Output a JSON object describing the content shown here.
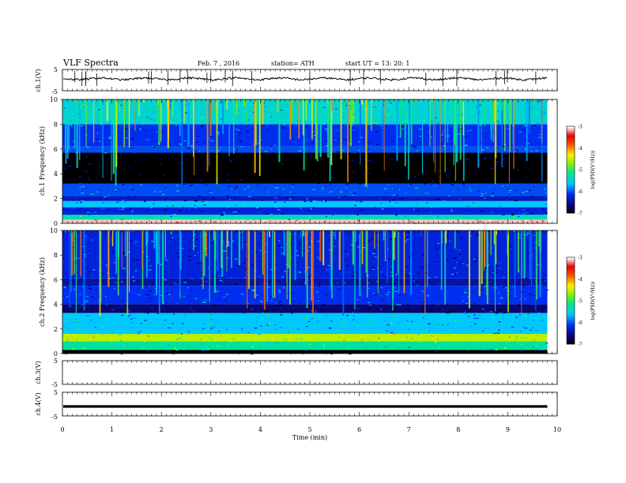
{
  "header": {
    "title": "VLF  Spectra",
    "date": "Feb. 7  , 2016",
    "station": "station= ATH",
    "start": "start  UT  =   13: 20: 1"
  },
  "chart_data": [
    {
      "type": "line",
      "panel": "ch1-waveform",
      "ylabel": "ch.1(V)",
      "ylim": [
        -5,
        5
      ],
      "yticks": [
        "5",
        "-5"
      ],
      "xlim": [
        0,
        10
      ],
      "trace_level": 0.6
    },
    {
      "type": "heatmap",
      "panel": "ch1-spectrogram",
      "ylabel": "ch.1 Frequency (kHz)",
      "ylim": [
        0,
        10
      ],
      "yticks": [
        "0",
        "2",
        "4",
        "6",
        "8",
        "10"
      ],
      "xlim": [
        0,
        10
      ],
      "data_end_min": 9.8,
      "colorbar": {
        "label": "log(PSD(V²/Hz))",
        "range": [
          -7,
          -3
        ],
        "ticks": [
          "-3",
          "-4",
          "-5",
          "-6",
          "-7"
        ]
      },
      "bands": [
        {
          "f0": 0.0,
          "f1": 0.3,
          "level": -3.1
        },
        {
          "f0": 0.3,
          "f1": 0.7,
          "level": -5.3
        },
        {
          "f0": 0.7,
          "f1": 1.3,
          "level": -6.2
        },
        {
          "f0": 1.3,
          "f1": 1.8,
          "level": -5.6
        },
        {
          "f0": 1.8,
          "f1": 2.2,
          "level": -6.3
        },
        {
          "f0": 2.2,
          "f1": 3.2,
          "level": -6.0
        },
        {
          "f0": 3.2,
          "f1": 5.7,
          "level": -7.0
        },
        {
          "f0": 5.7,
          "f1": 6.2,
          "level": -6.0
        },
        {
          "f0": 6.2,
          "f1": 8.0,
          "level": -6.1
        },
        {
          "f0": 8.0,
          "f1": 10.0,
          "level": -5.4
        }
      ]
    },
    {
      "type": "heatmap",
      "panel": "ch2-spectrogram",
      "ylabel": "ch.2 Frequency (kHz)",
      "ylim": [
        0,
        10
      ],
      "yticks": [
        "0",
        "2",
        "4",
        "6",
        "8",
        "10"
      ],
      "xlim": [
        0,
        10
      ],
      "data_end_min": 9.8,
      "colorbar": {
        "label": "log(PSD(V²/Hz))",
        "range": [
          -7,
          -3
        ],
        "ticks": [
          "-3",
          "-4",
          "-5",
          "-6",
          "-7"
        ]
      },
      "bands": [
        {
          "f0": 0.0,
          "f1": 0.3,
          "level": -7.0
        },
        {
          "f0": 0.3,
          "f1": 1.0,
          "level": -5.2
        },
        {
          "f0": 1.0,
          "f1": 1.6,
          "level": -4.5
        },
        {
          "f0": 1.6,
          "f1": 3.3,
          "level": -5.6
        },
        {
          "f0": 3.3,
          "f1": 4.0,
          "level": -6.6
        },
        {
          "f0": 4.0,
          "f1": 5.5,
          "level": -6.1
        },
        {
          "f0": 5.5,
          "f1": 6.1,
          "level": -6.4
        },
        {
          "f0": 6.1,
          "f1": 10.0,
          "level": -6.2
        }
      ]
    },
    {
      "type": "line",
      "panel": "ch3-waveform",
      "ylabel": "ch.3(V)",
      "ylim": [
        -5,
        5
      ],
      "yticks": [
        "5",
        "-5"
      ],
      "xlim": [
        0,
        10
      ],
      "trace_level": null
    },
    {
      "type": "line",
      "panel": "ch4-waveform",
      "ylabel": "ch.4(V)",
      "ylim": [
        -5,
        5
      ],
      "yticks": [
        "5",
        "-5"
      ],
      "xlim": [
        0,
        10
      ],
      "trace_level": -1.0
    }
  ],
  "xaxis": {
    "label": "Time  (min)",
    "ticks": [
      "0",
      "1",
      "2",
      "3",
      "4",
      "5",
      "6",
      "7",
      "8",
      "9",
      "10"
    ]
  }
}
